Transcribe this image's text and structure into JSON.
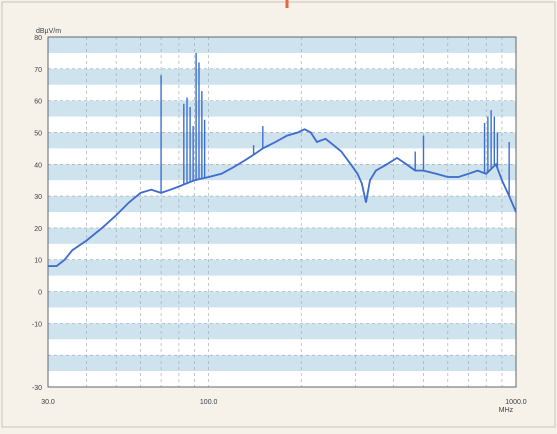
{
  "chart_data": {
    "type": "line",
    "ylabel": "dBµV/m",
    "xlabel": "MHz",
    "x_scale": "log",
    "xlim": [
      30,
      1000
    ],
    "ylim": [
      -30,
      80
    ],
    "y_ticks": [
      80,
      70,
      60,
      50,
      40,
      30,
      20,
      10,
      0,
      -10,
      -30
    ],
    "x_tick_labels": [
      {
        "x": 30,
        "label": "30.0"
      },
      {
        "x": 100,
        "label": "100.0"
      },
      {
        "x": 1000,
        "label": "1000.0"
      }
    ],
    "grid": true,
    "series": [
      {
        "name": "",
        "color": "#3c6fd2",
        "baseline": [
          [
            30,
            8
          ],
          [
            32,
            8
          ],
          [
            34,
            10
          ],
          [
            36,
            13
          ],
          [
            40,
            16
          ],
          [
            45,
            20
          ],
          [
            50,
            24
          ],
          [
            55,
            28
          ],
          [
            60,
            31
          ],
          [
            65,
            32
          ],
          [
            70,
            31
          ],
          [
            75,
            32
          ],
          [
            80,
            33
          ],
          [
            90,
            35
          ],
          [
            100,
            36
          ],
          [
            110,
            37
          ],
          [
            120,
            39
          ],
          [
            130,
            41
          ],
          [
            140,
            43
          ],
          [
            150,
            45
          ],
          [
            165,
            47
          ],
          [
            180,
            49
          ],
          [
            195,
            50
          ],
          [
            205,
            51
          ],
          [
            215,
            50
          ],
          [
            225,
            47
          ],
          [
            240,
            48
          ],
          [
            255,
            46
          ],
          [
            270,
            44
          ],
          [
            290,
            40
          ],
          [
            305,
            37
          ],
          [
            315,
            34
          ],
          [
            325,
            28
          ],
          [
            335,
            35
          ],
          [
            350,
            38
          ],
          [
            380,
            40
          ],
          [
            410,
            42
          ],
          [
            440,
            40
          ],
          [
            470,
            38
          ],
          [
            500,
            38
          ],
          [
            550,
            37
          ],
          [
            600,
            36
          ],
          [
            650,
            36
          ],
          [
            700,
            37
          ],
          [
            750,
            38
          ],
          [
            800,
            37
          ],
          [
            860,
            40
          ],
          [
            900,
            35
          ],
          [
            950,
            30
          ],
          [
            1000,
            25
          ]
        ],
        "spikes": [
          [
            70,
            68
          ],
          [
            83,
            59
          ],
          [
            85,
            61
          ],
          [
            87,
            58
          ],
          [
            89,
            52
          ],
          [
            91,
            75
          ],
          [
            93,
            72
          ],
          [
            95,
            63
          ],
          [
            97,
            54
          ],
          [
            140,
            46
          ],
          [
            150,
            52
          ],
          [
            155,
            46
          ],
          [
            165,
            47
          ],
          [
            500,
            49
          ],
          [
            470,
            44
          ],
          [
            790,
            53
          ],
          [
            810,
            55
          ],
          [
            830,
            57
          ],
          [
            850,
            55
          ],
          [
            870,
            50
          ],
          [
            950,
            47
          ]
        ]
      }
    ]
  }
}
